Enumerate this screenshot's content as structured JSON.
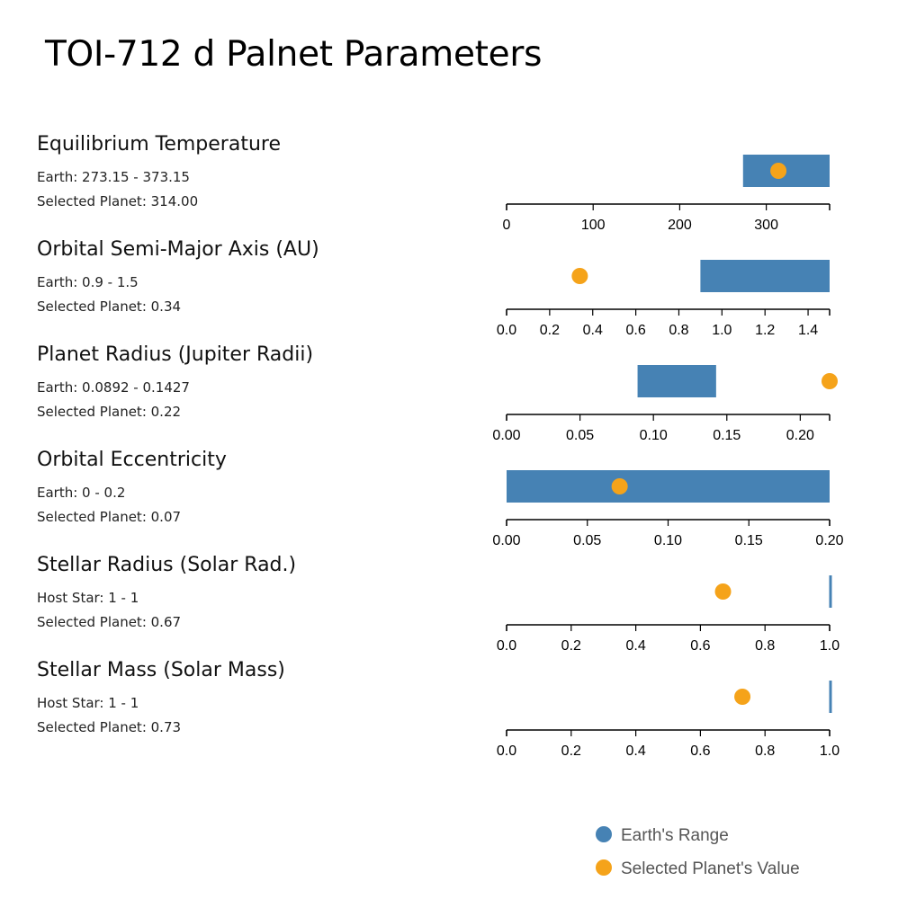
{
  "title": "TOI-712 d Palnet Parameters",
  "colors": {
    "range": "#4682b4",
    "value": "#f5a31a",
    "axis": "#000000"
  },
  "legend": {
    "range_label": "Earth's Range",
    "value_label": "Selected Planet's Value"
  },
  "parameters": [
    {
      "name": "Equilibrium Temperature",
      "range_text": "Earth: 273.15 - 373.15",
      "value_text": "Selected Planet: 314.00"
    },
    {
      "name": "Orbital Semi-Major Axis (AU)",
      "range_text": "Earth: 0.9 - 1.5",
      "value_text": "Selected Planet: 0.34"
    },
    {
      "name": "Planet Radius (Jupiter Radii)",
      "range_text": "Earth: 0.0892 - 0.1427",
      "value_text": "Selected Planet: 0.22"
    },
    {
      "name": "Orbital Eccentricity",
      "range_text": "Earth: 0 - 0.2",
      "value_text": "Selected Planet: 0.07"
    },
    {
      "name": "Stellar Radius (Solar Rad.)",
      "range_text": "Host Star: 1 - 1",
      "value_text": "Selected Planet: 0.67"
    },
    {
      "name": "Stellar Mass (Solar Mass)",
      "range_text": "Host Star: 1 - 1",
      "value_text": "Selected Planet: 0.73"
    }
  ],
  "chart_data": [
    {
      "type": "range-dot",
      "title": "Equilibrium Temperature",
      "range": [
        273.15,
        373.15
      ],
      "value": 314.0,
      "domain": [
        0,
        373.15
      ],
      "ticks": [
        0,
        100,
        200,
        300
      ],
      "tick_labels": [
        "0",
        "100",
        "200",
        "300"
      ]
    },
    {
      "type": "range-dot",
      "title": "Orbital Semi-Major Axis (AU)",
      "range": [
        0.9,
        1.5
      ],
      "value": 0.34,
      "domain": [
        0,
        1.5
      ],
      "ticks": [
        0,
        0.2,
        0.4,
        0.6,
        0.8,
        1.0,
        1.2,
        1.4
      ],
      "tick_labels": [
        "0.0",
        "0.2",
        "0.4",
        "0.6",
        "0.8",
        "1.0",
        "1.2",
        "1.4"
      ]
    },
    {
      "type": "range-dot",
      "title": "Planet Radius (Jupiter Radii)",
      "range": [
        0.0892,
        0.1427
      ],
      "value": 0.22,
      "domain": [
        0,
        0.22
      ],
      "ticks": [
        0,
        0.05,
        0.1,
        0.15,
        0.2
      ],
      "tick_labels": [
        "0.00",
        "0.05",
        "0.10",
        "0.15",
        "0.20"
      ]
    },
    {
      "type": "range-dot",
      "title": "Orbital Eccentricity",
      "range": [
        0,
        0.2
      ],
      "value": 0.07,
      "domain": [
        0,
        0.2
      ],
      "ticks": [
        0,
        0.05,
        0.1,
        0.15,
        0.2
      ],
      "tick_labels": [
        "0.00",
        "0.05",
        "0.10",
        "0.15",
        "0.20"
      ]
    },
    {
      "type": "range-dot",
      "title": "Stellar Radius (Solar Rad.)",
      "range": [
        1,
        1
      ],
      "value": 0.67,
      "domain": [
        0,
        1
      ],
      "ticks": [
        0,
        0.2,
        0.4,
        0.6,
        0.8,
        1.0
      ],
      "tick_labels": [
        "0.0",
        "0.2",
        "0.4",
        "0.6",
        "0.8",
        "1.0"
      ]
    },
    {
      "type": "range-dot",
      "title": "Stellar Mass (Solar Mass)",
      "range": [
        1,
        1
      ],
      "value": 0.73,
      "domain": [
        0,
        1
      ],
      "ticks": [
        0,
        0.2,
        0.4,
        0.6,
        0.8,
        1.0
      ],
      "tick_labels": [
        "0.0",
        "0.2",
        "0.4",
        "0.6",
        "0.8",
        "1.0"
      ]
    }
  ]
}
